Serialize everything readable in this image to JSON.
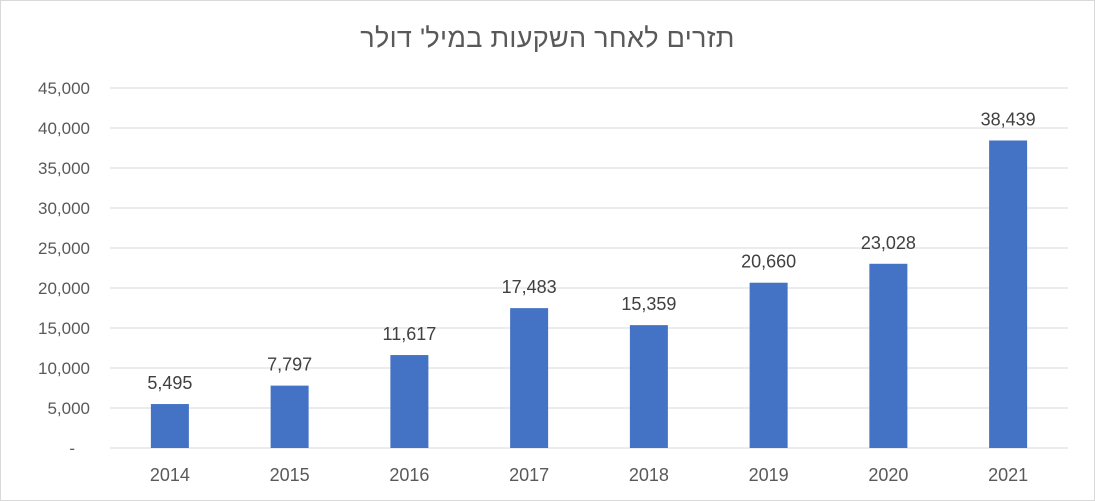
{
  "chart_data": {
    "type": "bar",
    "title": "תזרים לאחר השקעות במיל' דולר",
    "xlabel": "",
    "ylabel": "",
    "categories": [
      "2014",
      "2015",
      "2016",
      "2017",
      "2018",
      "2019",
      "2020",
      "2021"
    ],
    "values": [
      5495,
      7797,
      11617,
      17483,
      15359,
      20660,
      23028,
      38439
    ],
    "data_labels": [
      "5,495",
      "7,797",
      "11,617",
      "17,483",
      "15,359",
      "20,660",
      "23,028",
      "38,439"
    ],
    "ylim": [
      0,
      45000
    ],
    "yticks": [
      0,
      5000,
      10000,
      15000,
      20000,
      25000,
      30000,
      35000,
      40000,
      45000
    ],
    "ytick_labels": [
      "-",
      "5,000",
      "10,000",
      "15,000",
      "20,000",
      "25,000",
      "30,000",
      "35,000",
      "40,000",
      "45,000"
    ],
    "grid": true,
    "legend": "none",
    "colors": {
      "bar": "#4472c4",
      "grid": "#d9d9d9",
      "text": "#595959"
    }
  }
}
